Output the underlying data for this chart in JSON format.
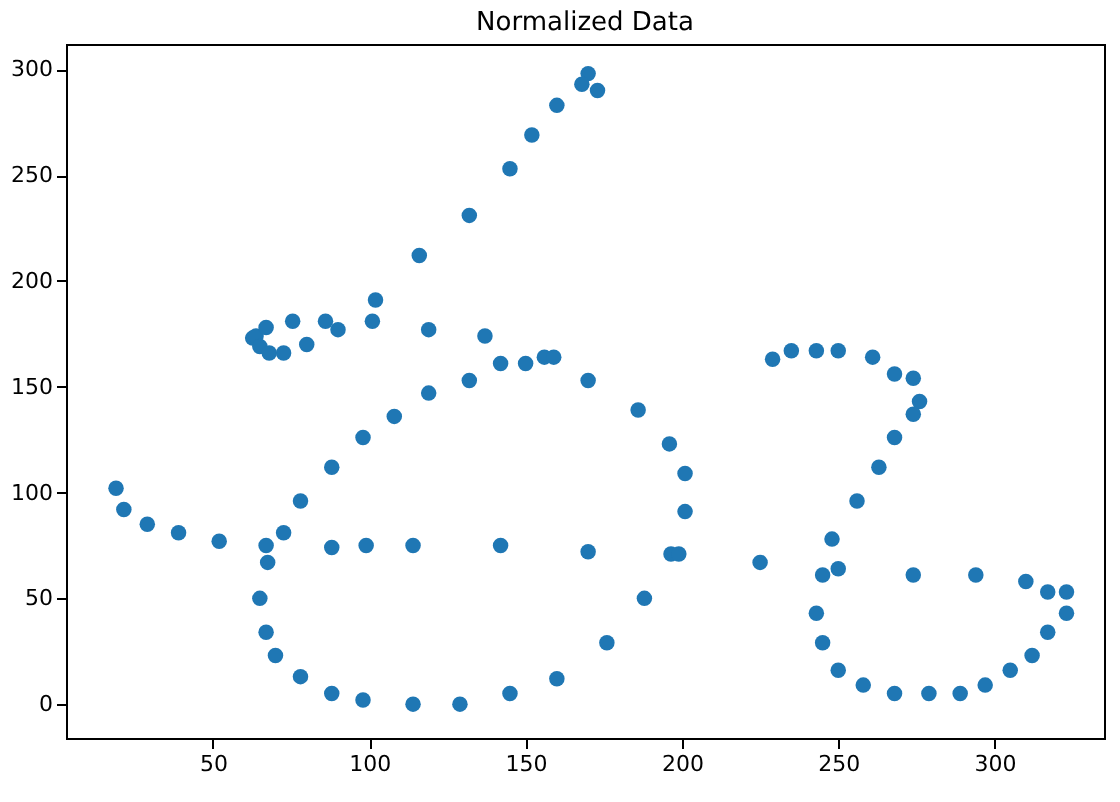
{
  "chart_data": {
    "type": "scatter",
    "title": "Normalized Data",
    "color": "#1f77b4",
    "marker": "circle",
    "grid": false,
    "x": [
      19,
      21.5,
      29,
      39,
      52,
      67,
      67.5,
      65,
      67,
      70,
      78,
      88,
      98,
      114,
      129,
      145,
      160,
      176,
      188,
      196.5,
      199,
      201,
      201,
      196,
      186,
      170,
      156,
      159,
      150,
      142,
      137,
      132,
      119,
      108,
      98,
      88,
      78,
      72.6,
      88,
      99,
      114,
      142,
      170,
      170,
      168,
      173,
      160,
      152,
      145,
      132,
      116,
      102,
      101,
      119,
      62.7,
      63.8,
      65,
      67,
      68,
      72.6,
      75.5,
      80,
      86,
      90,
      229,
      235,
      243,
      250,
      261,
      268,
      274,
      276,
      274,
      268,
      263,
      256,
      248,
      225,
      245,
      250,
      274,
      294,
      310,
      317,
      323,
      323,
      317,
      312,
      305,
      297,
      289,
      279,
      268,
      258,
      250,
      245,
      243
    ],
    "values": [
      102,
      92,
      85,
      81,
      77,
      75,
      67,
      50,
      34,
      23,
      13,
      5,
      2,
      0,
      0,
      5,
      12,
      29,
      50,
      71,
      71,
      91,
      109,
      123,
      139,
      153,
      164,
      164,
      161,
      161,
      174,
      153,
      147,
      136,
      126,
      112,
      96,
      81,
      74,
      75,
      75,
      75,
      72,
      298,
      293,
      290,
      283,
      269,
      253,
      231,
      212,
      191,
      181,
      177,
      173,
      174,
      169,
      178,
      166,
      166,
      181,
      170,
      181,
      177,
      163,
      167,
      167,
      167,
      164,
      156,
      154,
      143,
      137,
      126,
      112,
      96,
      78,
      67,
      61,
      64,
      61,
      61,
      58,
      53,
      53,
      43,
      34,
      23,
      16,
      9,
      5,
      5,
      5,
      9,
      16,
      29,
      43
    ],
    "xlim": [
      3,
      335
    ],
    "ylim": [
      -16,
      312
    ],
    "xticks": [
      50,
      100,
      150,
      200,
      250,
      300
    ],
    "yticks": [
      0,
      50,
      100,
      150,
      200,
      250,
      300
    ]
  }
}
